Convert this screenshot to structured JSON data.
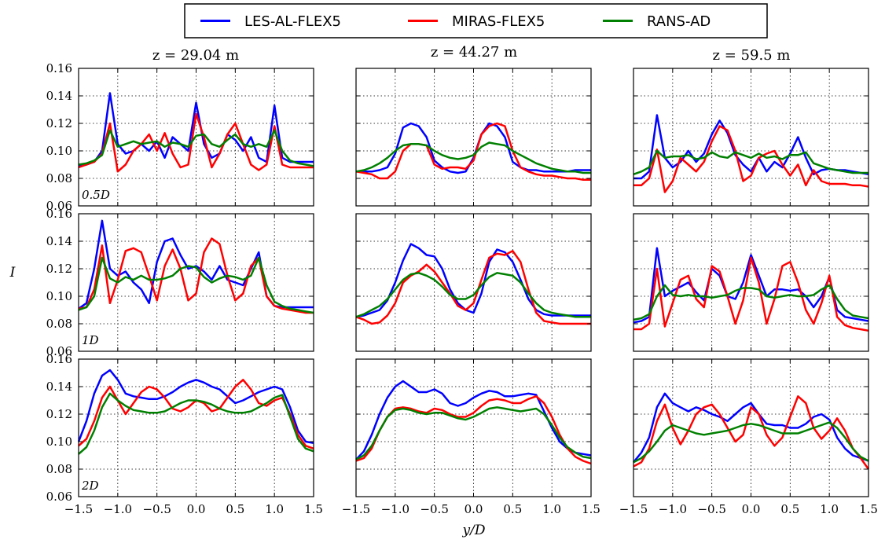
{
  "chart_data": {
    "type": "line",
    "grid": true,
    "legend_position": "top-center",
    "xlabel": "y/D",
    "ylabel": "I",
    "xlim": [
      -1.5,
      1.5
    ],
    "ylim": [
      0.06,
      0.16
    ],
    "xticks": [
      "−1.5",
      "−1.0",
      "−0.5",
      "0.0",
      "0.5",
      "1.0",
      "1.5"
    ],
    "yticks": [
      "0.06",
      "0.08",
      "0.10",
      "0.12",
      "0.14",
      "0.16"
    ],
    "column_titles": [
      "z = 29.04 m",
      "z = 44.27 m",
      "z = 59.5 m"
    ],
    "row_labels": [
      "0.5D",
      "1D",
      "2D"
    ],
    "series_meta": [
      {
        "name": "LES-AL-FLEX5",
        "color": "#0000ff"
      },
      {
        "name": "MIRAS-FLEX5",
        "color": "#ff0000"
      },
      {
        "name": "RANS-AD",
        "color": "#008000"
      }
    ],
    "x": [
      -1.5,
      -1.4,
      -1.3,
      -1.2,
      -1.1,
      -1.0,
      -0.9,
      -0.8,
      -0.7,
      -0.6,
      -0.5,
      -0.4,
      -0.3,
      -0.2,
      -0.1,
      0.0,
      0.1,
      0.2,
      0.3,
      0.4,
      0.5,
      0.6,
      0.7,
      0.8,
      0.9,
      1.0,
      1.1,
      1.2,
      1.3,
      1.4,
      1.5
    ],
    "panels": [
      {
        "row": 0,
        "col": 0,
        "series": [
          [
            0.089,
            0.09,
            0.092,
            0.1,
            0.142,
            0.105,
            0.098,
            0.1,
            0.105,
            0.1,
            0.107,
            0.095,
            0.11,
            0.105,
            0.1,
            0.135,
            0.105,
            0.095,
            0.098,
            0.112,
            0.108,
            0.1,
            0.11,
            0.095,
            0.092,
            0.133,
            0.095,
            0.092,
            0.092,
            0.092,
            0.092
          ],
          [
            0.088,
            0.09,
            0.092,
            0.098,
            0.12,
            0.085,
            0.09,
            0.1,
            0.105,
            0.112,
            0.1,
            0.113,
            0.098,
            0.088,
            0.09,
            0.127,
            0.11,
            0.088,
            0.098,
            0.112,
            0.12,
            0.105,
            0.09,
            0.086,
            0.09,
            0.118,
            0.09,
            0.088,
            0.088,
            0.088,
            0.088
          ],
          [
            0.09,
            0.091,
            0.093,
            0.097,
            0.115,
            0.103,
            0.105,
            0.107,
            0.105,
            0.106,
            0.107,
            0.103,
            0.106,
            0.105,
            0.103,
            0.111,
            0.112,
            0.105,
            0.103,
            0.108,
            0.112,
            0.105,
            0.103,
            0.105,
            0.103,
            0.115,
            0.1,
            0.093,
            0.091,
            0.09,
            0.089
          ]
        ]
      },
      {
        "row": 0,
        "col": 1,
        "series": [
          [
            0.085,
            0.085,
            0.085,
            0.086,
            0.088,
            0.098,
            0.117,
            0.12,
            0.118,
            0.11,
            0.093,
            0.088,
            0.085,
            0.084,
            0.085,
            0.095,
            0.112,
            0.12,
            0.118,
            0.11,
            0.092,
            0.088,
            0.086,
            0.086,
            0.085,
            0.085,
            0.085,
            0.085,
            0.086,
            0.086,
            0.086
          ],
          [
            0.085,
            0.084,
            0.083,
            0.08,
            0.08,
            0.085,
            0.1,
            0.105,
            0.105,
            0.104,
            0.09,
            0.087,
            0.088,
            0.088,
            0.087,
            0.093,
            0.112,
            0.118,
            0.12,
            0.118,
            0.1,
            0.088,
            0.085,
            0.083,
            0.082,
            0.082,
            0.081,
            0.08,
            0.08,
            0.079,
            0.079
          ],
          [
            0.085,
            0.086,
            0.088,
            0.091,
            0.095,
            0.1,
            0.104,
            0.105,
            0.105,
            0.104,
            0.1,
            0.097,
            0.095,
            0.094,
            0.095,
            0.097,
            0.103,
            0.106,
            0.105,
            0.104,
            0.1,
            0.097,
            0.094,
            0.091,
            0.089,
            0.087,
            0.086,
            0.085,
            0.085,
            0.084,
            0.084
          ]
        ]
      },
      {
        "row": 0,
        "col": 2,
        "series": [
          [
            0.08,
            0.08,
            0.085,
            0.126,
            0.095,
            0.088,
            0.092,
            0.1,
            0.092,
            0.098,
            0.112,
            0.122,
            0.113,
            0.097,
            0.09,
            0.085,
            0.095,
            0.085,
            0.092,
            0.088,
            0.098,
            0.11,
            0.095,
            0.083,
            0.086,
            0.087,
            0.086,
            0.086,
            0.085,
            0.084,
            0.083
          ],
          [
            0.075,
            0.075,
            0.08,
            0.101,
            0.07,
            0.078,
            0.095,
            0.09,
            0.085,
            0.092,
            0.107,
            0.118,
            0.115,
            0.1,
            0.078,
            0.082,
            0.095,
            0.098,
            0.1,
            0.09,
            0.082,
            0.09,
            0.075,
            0.086,
            0.078,
            0.076,
            0.076,
            0.076,
            0.075,
            0.075,
            0.074
          ],
          [
            0.083,
            0.085,
            0.088,
            0.1,
            0.095,
            0.096,
            0.096,
            0.097,
            0.094,
            0.095,
            0.099,
            0.096,
            0.095,
            0.099,
            0.097,
            0.095,
            0.098,
            0.095,
            0.096,
            0.094,
            0.097,
            0.097,
            0.099,
            0.091,
            0.089,
            0.087,
            0.086,
            0.085,
            0.084,
            0.084,
            0.084
          ]
        ]
      },
      {
        "row": 1,
        "col": 0,
        "series": [
          [
            0.091,
            0.095,
            0.12,
            0.155,
            0.12,
            0.115,
            0.118,
            0.11,
            0.105,
            0.095,
            0.125,
            0.14,
            0.142,
            0.13,
            0.12,
            0.122,
            0.118,
            0.112,
            0.122,
            0.112,
            0.11,
            0.108,
            0.12,
            0.132,
            0.1,
            0.093,
            0.092,
            0.092,
            0.092,
            0.092,
            0.092
          ],
          [
            0.091,
            0.092,
            0.105,
            0.137,
            0.095,
            0.112,
            0.133,
            0.135,
            0.132,
            0.115,
            0.097,
            0.122,
            0.134,
            0.12,
            0.097,
            0.102,
            0.132,
            0.142,
            0.138,
            0.115,
            0.097,
            0.102,
            0.122,
            0.128,
            0.1,
            0.093,
            0.091,
            0.09,
            0.089,
            0.088,
            0.088
          ],
          [
            0.09,
            0.092,
            0.1,
            0.128,
            0.113,
            0.11,
            0.114,
            0.112,
            0.115,
            0.112,
            0.112,
            0.113,
            0.115,
            0.12,
            0.122,
            0.121,
            0.114,
            0.11,
            0.113,
            0.115,
            0.114,
            0.112,
            0.115,
            0.128,
            0.108,
            0.096,
            0.093,
            0.091,
            0.09,
            0.089,
            0.088
          ]
        ]
      },
      {
        "row": 1,
        "col": 1,
        "series": [
          [
            0.085,
            0.086,
            0.088,
            0.09,
            0.097,
            0.11,
            0.126,
            0.138,
            0.135,
            0.13,
            0.129,
            0.12,
            0.105,
            0.095,
            0.09,
            0.088,
            0.102,
            0.125,
            0.134,
            0.132,
            0.125,
            0.112,
            0.098,
            0.09,
            0.087,
            0.086,
            0.086,
            0.086,
            0.086,
            0.086,
            0.086
          ],
          [
            0.085,
            0.083,
            0.08,
            0.081,
            0.086,
            0.095,
            0.11,
            0.115,
            0.118,
            0.123,
            0.118,
            0.11,
            0.102,
            0.093,
            0.09,
            0.095,
            0.112,
            0.128,
            0.131,
            0.13,
            0.133,
            0.125,
            0.105,
            0.088,
            0.082,
            0.081,
            0.08,
            0.08,
            0.08,
            0.08,
            0.08
          ],
          [
            0.085,
            0.087,
            0.09,
            0.093,
            0.098,
            0.105,
            0.112,
            0.116,
            0.117,
            0.115,
            0.112,
            0.107,
            0.101,
            0.098,
            0.098,
            0.101,
            0.108,
            0.114,
            0.117,
            0.116,
            0.115,
            0.11,
            0.102,
            0.095,
            0.09,
            0.088,
            0.087,
            0.086,
            0.085,
            0.085,
            0.085
          ]
        ]
      },
      {
        "row": 1,
        "col": 2,
        "series": [
          [
            0.081,
            0.082,
            0.085,
            0.135,
            0.1,
            0.104,
            0.107,
            0.11,
            0.103,
            0.097,
            0.12,
            0.115,
            0.1,
            0.098,
            0.11,
            0.13,
            0.115,
            0.1,
            0.105,
            0.105,
            0.104,
            0.105,
            0.1,
            0.092,
            0.1,
            0.114,
            0.09,
            0.085,
            0.084,
            0.083,
            0.082
          ],
          [
            0.076,
            0.076,
            0.08,
            0.12,
            0.078,
            0.095,
            0.112,
            0.115,
            0.098,
            0.092,
            0.122,
            0.118,
            0.1,
            0.08,
            0.097,
            0.128,
            0.11,
            0.08,
            0.098,
            0.122,
            0.125,
            0.11,
            0.09,
            0.08,
            0.095,
            0.115,
            0.085,
            0.079,
            0.077,
            0.076,
            0.075
          ],
          [
            0.083,
            0.084,
            0.087,
            0.1,
            0.108,
            0.101,
            0.1,
            0.101,
            0.1,
            0.1,
            0.099,
            0.1,
            0.101,
            0.104,
            0.106,
            0.106,
            0.105,
            0.1,
            0.099,
            0.1,
            0.101,
            0.1,
            0.1,
            0.101,
            0.105,
            0.108,
            0.098,
            0.09,
            0.086,
            0.085,
            0.084
          ]
        ]
      },
      {
        "row": 2,
        "col": 0,
        "series": [
          [
            0.1,
            0.115,
            0.135,
            0.148,
            0.152,
            0.145,
            0.135,
            0.133,
            0.132,
            0.131,
            0.131,
            0.133,
            0.136,
            0.14,
            0.143,
            0.145,
            0.143,
            0.14,
            0.138,
            0.133,
            0.128,
            0.13,
            0.133,
            0.136,
            0.138,
            0.14,
            0.138,
            0.125,
            0.108,
            0.1,
            0.099
          ],
          [
            0.097,
            0.102,
            0.115,
            0.132,
            0.14,
            0.13,
            0.12,
            0.128,
            0.136,
            0.14,
            0.138,
            0.132,
            0.124,
            0.122,
            0.125,
            0.13,
            0.128,
            0.122,
            0.124,
            0.132,
            0.14,
            0.145,
            0.138,
            0.128,
            0.126,
            0.13,
            0.132,
            0.12,
            0.105,
            0.097,
            0.095
          ],
          [
            0.091,
            0.096,
            0.108,
            0.125,
            0.135,
            0.13,
            0.126,
            0.123,
            0.122,
            0.121,
            0.121,
            0.122,
            0.125,
            0.128,
            0.13,
            0.13,
            0.129,
            0.127,
            0.124,
            0.122,
            0.121,
            0.121,
            0.122,
            0.125,
            0.128,
            0.132,
            0.134,
            0.118,
            0.102,
            0.095,
            0.093
          ]
        ]
      },
      {
        "row": 2,
        "col": 1,
        "series": [
          [
            0.087,
            0.093,
            0.105,
            0.12,
            0.132,
            0.14,
            0.144,
            0.14,
            0.136,
            0.136,
            0.138,
            0.135,
            0.128,
            0.126,
            0.128,
            0.132,
            0.135,
            0.137,
            0.136,
            0.133,
            0.133,
            0.134,
            0.135,
            0.134,
            0.122,
            0.11,
            0.1,
            0.095,
            0.092,
            0.091,
            0.09
          ],
          [
            0.086,
            0.088,
            0.095,
            0.108,
            0.118,
            0.124,
            0.125,
            0.124,
            0.122,
            0.121,
            0.124,
            0.123,
            0.12,
            0.118,
            0.118,
            0.121,
            0.126,
            0.13,
            0.131,
            0.13,
            0.128,
            0.128,
            0.131,
            0.133,
            0.128,
            0.118,
            0.105,
            0.095,
            0.089,
            0.086,
            0.084
          ],
          [
            0.087,
            0.09,
            0.097,
            0.108,
            0.118,
            0.123,
            0.124,
            0.123,
            0.121,
            0.12,
            0.121,
            0.121,
            0.119,
            0.117,
            0.116,
            0.118,
            0.121,
            0.124,
            0.125,
            0.124,
            0.123,
            0.122,
            0.123,
            0.124,
            0.12,
            0.112,
            0.103,
            0.096,
            0.092,
            0.089,
            0.088
          ]
        ]
      },
      {
        "row": 2,
        "col": 2,
        "series": [
          [
            0.085,
            0.092,
            0.103,
            0.125,
            0.135,
            0.128,
            0.125,
            0.122,
            0.125,
            0.123,
            0.12,
            0.118,
            0.115,
            0.12,
            0.125,
            0.128,
            0.12,
            0.113,
            0.112,
            0.112,
            0.11,
            0.11,
            0.113,
            0.118,
            0.12,
            0.116,
            0.103,
            0.095,
            0.09,
            0.088,
            0.086
          ],
          [
            0.082,
            0.085,
            0.095,
            0.115,
            0.127,
            0.11,
            0.098,
            0.108,
            0.12,
            0.125,
            0.127,
            0.12,
            0.11,
            0.1,
            0.105,
            0.125,
            0.12,
            0.105,
            0.097,
            0.103,
            0.118,
            0.133,
            0.128,
            0.11,
            0.102,
            0.108,
            0.117,
            0.108,
            0.095,
            0.088,
            0.08
          ],
          [
            0.085,
            0.088,
            0.093,
            0.1,
            0.108,
            0.112,
            0.11,
            0.108,
            0.106,
            0.105,
            0.106,
            0.107,
            0.108,
            0.11,
            0.112,
            0.113,
            0.112,
            0.11,
            0.108,
            0.106,
            0.106,
            0.106,
            0.108,
            0.11,
            0.112,
            0.114,
            0.11,
            0.103,
            0.095,
            0.089,
            0.086
          ]
        ]
      }
    ]
  }
}
